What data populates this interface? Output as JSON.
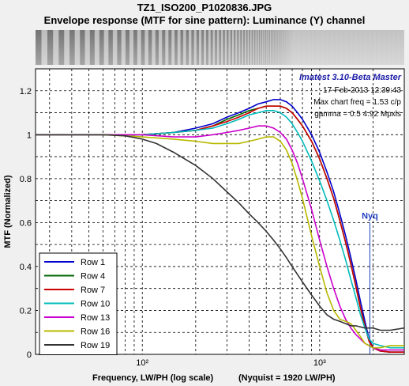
{
  "window": {
    "title_line1": "TZ1_ISO200_P1020836.JPG",
    "title_line2": "Envelope response (MTF for sine pattern):  Luminance (Y) channel"
  },
  "chart_data": {
    "type": "line",
    "xscale": "log",
    "xlim": [
      25,
      3000
    ],
    "ylim": [
      0,
      1.3
    ],
    "xlabel": "Frequency, LW/PH (log scale)",
    "xlabel_extra": "(Nyquist = 1920 LW/PH)",
    "ylabel": "MTF (Normalized)",
    "x_ticklabels": [
      "10²",
      "10³"
    ],
    "y_ticks": [
      0,
      0.2,
      0.4,
      0.6,
      0.8,
      1,
      1.2
    ],
    "y_ticklabels": [
      "0",
      "0.2",
      "0.4",
      "0.6",
      "0.8",
      "1",
      "1.2"
    ],
    "grid": true,
    "legend_position": "bottom-left",
    "nyquist": {
      "x": 1920,
      "label": "Nyq",
      "color": "#1f3fbf"
    },
    "annotations": {
      "version": "Imatest 3.10-Beta Master",
      "date": "17-Feb-2013 12:39:43",
      "max_freq": "Max chart freq = 1.53 c/p",
      "gamma": "gamma = 0.5   4.92 Mpxls"
    },
    "series": [
      {
        "name": "Row 1",
        "color": "#0000cc",
        "points": [
          [
            25,
            1
          ],
          [
            60,
            1.0
          ],
          [
            100,
            1.0
          ],
          [
            150,
            1.01
          ],
          [
            200,
            1.03
          ],
          [
            250,
            1.05
          ],
          [
            300,
            1.08
          ],
          [
            350,
            1.1
          ],
          [
            400,
            1.12
          ],
          [
            450,
            1.14
          ],
          [
            500,
            1.15
          ],
          [
            550,
            1.16
          ],
          [
            600,
            1.16
          ],
          [
            650,
            1.15
          ],
          [
            700,
            1.13
          ],
          [
            750,
            1.1
          ],
          [
            800,
            1.07
          ],
          [
            900,
            1.0
          ],
          [
            1000,
            0.92
          ],
          [
            1100,
            0.83
          ],
          [
            1200,
            0.74
          ],
          [
            1300,
            0.64
          ],
          [
            1400,
            0.54
          ],
          [
            1500,
            0.44
          ],
          [
            1600,
            0.34
          ],
          [
            1700,
            0.24
          ],
          [
            1800,
            0.15
          ],
          [
            1900,
            0.07
          ],
          [
            2000,
            0.03
          ],
          [
            2200,
            0.015
          ],
          [
            2500,
            0.01
          ],
          [
            3000,
            0.01
          ]
        ]
      },
      {
        "name": "Row 4",
        "color": "#006600",
        "points": [
          [
            25,
            1
          ],
          [
            60,
            1.0
          ],
          [
            100,
            1.0
          ],
          [
            150,
            1.01
          ],
          [
            200,
            1.02
          ],
          [
            250,
            1.04
          ],
          [
            300,
            1.07
          ],
          [
            350,
            1.09
          ],
          [
            400,
            1.11
          ],
          [
            450,
            1.12
          ],
          [
            500,
            1.13
          ],
          [
            550,
            1.13
          ],
          [
            600,
            1.13
          ],
          [
            650,
            1.12
          ],
          [
            700,
            1.1
          ],
          [
            750,
            1.07
          ],
          [
            800,
            1.04
          ],
          [
            900,
            0.97
          ],
          [
            1000,
            0.89
          ],
          [
            1100,
            0.8
          ],
          [
            1200,
            0.71
          ],
          [
            1300,
            0.61
          ],
          [
            1400,
            0.51
          ],
          [
            1500,
            0.41
          ],
          [
            1600,
            0.31
          ],
          [
            1700,
            0.21
          ],
          [
            1800,
            0.13
          ],
          [
            1900,
            0.06
          ],
          [
            2000,
            0.03
          ],
          [
            2200,
            0.015
          ],
          [
            2500,
            0.01
          ],
          [
            3000,
            0.01
          ]
        ]
      },
      {
        "name": "Row 7",
        "color": "#cc0000",
        "points": [
          [
            25,
            1
          ],
          [
            60,
            1.0
          ],
          [
            100,
            1.0
          ],
          [
            150,
            1.01
          ],
          [
            200,
            1.02
          ],
          [
            250,
            1.04
          ],
          [
            300,
            1.06
          ],
          [
            350,
            1.08
          ],
          [
            400,
            1.1
          ],
          [
            450,
            1.12
          ],
          [
            500,
            1.13
          ],
          [
            550,
            1.13
          ],
          [
            600,
            1.13
          ],
          [
            650,
            1.12
          ],
          [
            700,
            1.1
          ],
          [
            750,
            1.07
          ],
          [
            800,
            1.04
          ],
          [
            900,
            0.97
          ],
          [
            1000,
            0.89
          ],
          [
            1100,
            0.8
          ],
          [
            1200,
            0.71
          ],
          [
            1300,
            0.61
          ],
          [
            1400,
            0.51
          ],
          [
            1500,
            0.41
          ],
          [
            1600,
            0.31
          ],
          [
            1700,
            0.21
          ],
          [
            1800,
            0.13
          ],
          [
            1900,
            0.06
          ],
          [
            2000,
            0.03
          ],
          [
            2200,
            0.015
          ],
          [
            2500,
            0.01
          ],
          [
            3000,
            0.01
          ]
        ]
      },
      {
        "name": "Row 10",
        "color": "#00bbbb",
        "points": [
          [
            25,
            1
          ],
          [
            60,
            1.0
          ],
          [
            100,
            1.0
          ],
          [
            150,
            1.01
          ],
          [
            200,
            1.02
          ],
          [
            250,
            1.03
          ],
          [
            300,
            1.05
          ],
          [
            350,
            1.07
          ],
          [
            400,
            1.09
          ],
          [
            450,
            1.1
          ],
          [
            500,
            1.11
          ],
          [
            550,
            1.11
          ],
          [
            600,
            1.1
          ],
          [
            650,
            1.08
          ],
          [
            700,
            1.05
          ],
          [
            750,
            1.01
          ],
          [
            800,
            0.97
          ],
          [
            900,
            0.88
          ],
          [
            1000,
            0.79
          ],
          [
            1100,
            0.7
          ],
          [
            1200,
            0.61
          ],
          [
            1300,
            0.52
          ],
          [
            1400,
            0.43
          ],
          [
            1500,
            0.34
          ],
          [
            1600,
            0.26
          ],
          [
            1700,
            0.18
          ],
          [
            1800,
            0.12
          ],
          [
            1900,
            0.07
          ],
          [
            2000,
            0.05
          ],
          [
            2200,
            0.04
          ],
          [
            2500,
            0.03
          ],
          [
            3000,
            0.03
          ]
        ]
      },
      {
        "name": "Row 13",
        "color": "#cc00cc",
        "points": [
          [
            25,
            1
          ],
          [
            60,
            1.0
          ],
          [
            100,
            1.0
          ],
          [
            150,
            0.99
          ],
          [
            200,
            0.99
          ],
          [
            250,
            1.0
          ],
          [
            300,
            1.01
          ],
          [
            350,
            1.02
          ],
          [
            400,
            1.03
          ],
          [
            450,
            1.04
          ],
          [
            500,
            1.04
          ],
          [
            550,
            1.03
          ],
          [
            600,
            1.01
          ],
          [
            650,
            0.98
          ],
          [
            700,
            0.93
          ],
          [
            750,
            0.87
          ],
          [
            800,
            0.8
          ],
          [
            900,
            0.66
          ],
          [
            1000,
            0.52
          ],
          [
            1100,
            0.4
          ],
          [
            1200,
            0.3
          ],
          [
            1300,
            0.22
          ],
          [
            1400,
            0.16
          ],
          [
            1500,
            0.12
          ],
          [
            1600,
            0.09
          ],
          [
            1800,
            0.05
          ],
          [
            2000,
            0.03
          ],
          [
            2200,
            0.02
          ],
          [
            2500,
            0.02
          ],
          [
            3000,
            0.02
          ]
        ]
      },
      {
        "name": "Row 16",
        "color": "#b8b800",
        "points": [
          [
            25,
            1
          ],
          [
            60,
            1.0
          ],
          [
            100,
            0.99
          ],
          [
            150,
            0.98
          ],
          [
            200,
            0.97
          ],
          [
            250,
            0.96
          ],
          [
            300,
            0.96
          ],
          [
            350,
            0.96
          ],
          [
            400,
            0.97
          ],
          [
            450,
            0.98
          ],
          [
            500,
            0.99
          ],
          [
            550,
            0.99
          ],
          [
            600,
            0.97
          ],
          [
            650,
            0.93
          ],
          [
            700,
            0.87
          ],
          [
            750,
            0.79
          ],
          [
            800,
            0.71
          ],
          [
            900,
            0.54
          ],
          [
            1000,
            0.4
          ],
          [
            1100,
            0.28
          ],
          [
            1200,
            0.2
          ],
          [
            1300,
            0.16
          ],
          [
            1400,
            0.15
          ],
          [
            1500,
            0.14
          ],
          [
            1600,
            0.11
          ],
          [
            1700,
            0.08
          ],
          [
            1800,
            0.05
          ],
          [
            2000,
            0.03
          ],
          [
            2200,
            0.03
          ],
          [
            2500,
            0.04
          ],
          [
            3000,
            0.04
          ]
        ]
      },
      {
        "name": "Row 19",
        "color": "#333333",
        "points": [
          [
            25,
            1
          ],
          [
            60,
            1.0
          ],
          [
            80,
            0.995
          ],
          [
            100,
            0.98
          ],
          [
            120,
            0.96
          ],
          [
            150,
            0.92
          ],
          [
            200,
            0.86
          ],
          [
            250,
            0.8
          ],
          [
            300,
            0.74
          ],
          [
            350,
            0.69
          ],
          [
            400,
            0.64
          ],
          [
            450,
            0.6
          ],
          [
            500,
            0.56
          ],
          [
            550,
            0.52
          ],
          [
            600,
            0.48
          ],
          [
            650,
            0.44
          ],
          [
            700,
            0.4
          ],
          [
            800,
            0.33
          ],
          [
            900,
            0.27
          ],
          [
            1000,
            0.22
          ],
          [
            1100,
            0.18
          ],
          [
            1200,
            0.16
          ],
          [
            1300,
            0.15
          ],
          [
            1400,
            0.14
          ],
          [
            1500,
            0.13
          ],
          [
            1600,
            0.13
          ],
          [
            1800,
            0.12
          ],
          [
            2000,
            0.12
          ],
          [
            2200,
            0.11
          ],
          [
            2500,
            0.11
          ],
          [
            3000,
            0.12
          ]
        ]
      }
    ]
  }
}
